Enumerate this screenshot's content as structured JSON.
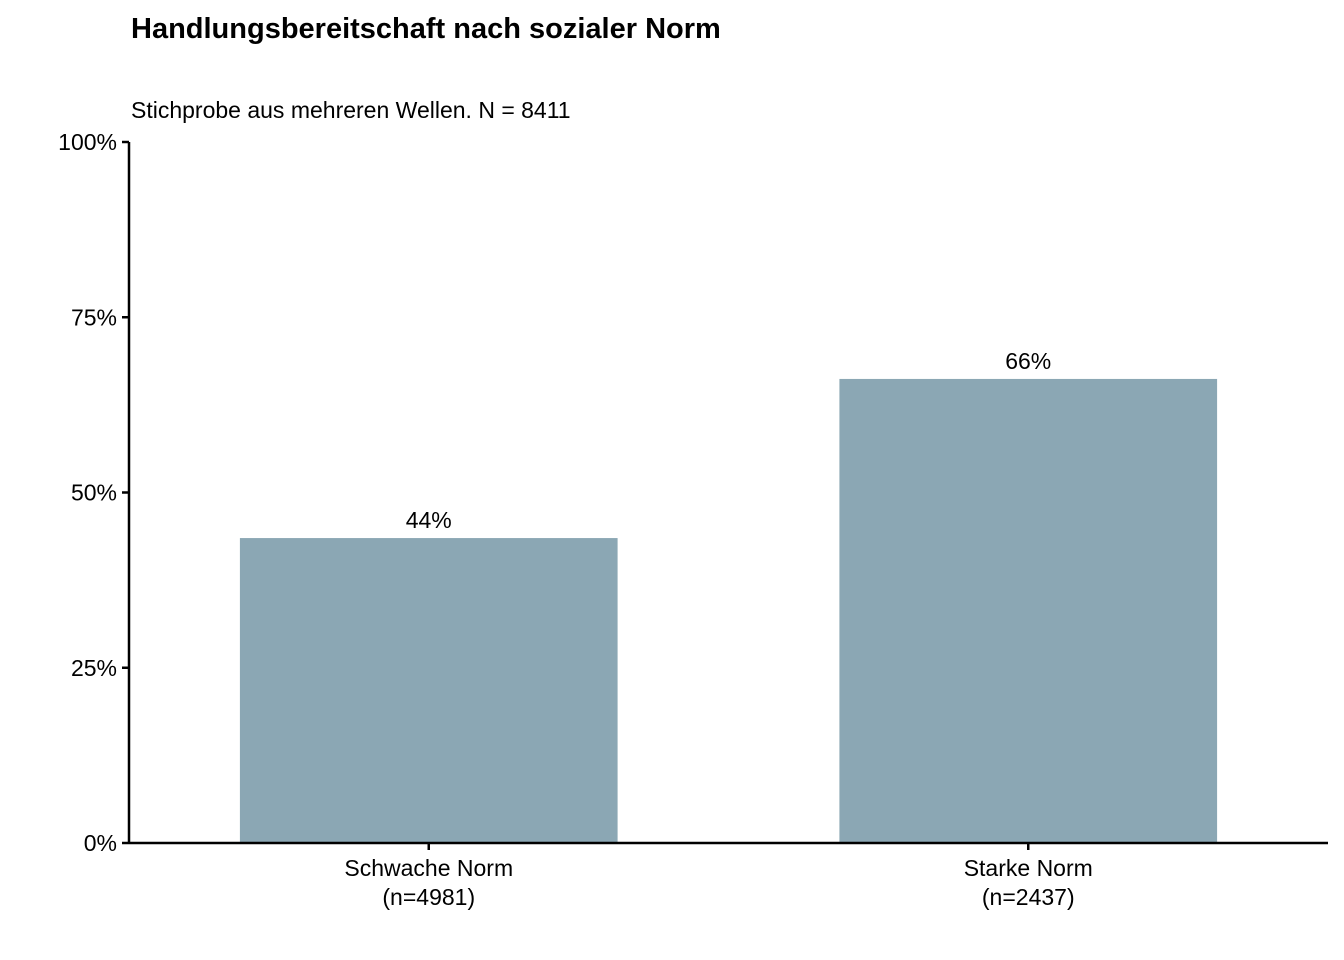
{
  "chart_data": {
    "type": "bar",
    "title": "Handlungsbereitschaft nach sozialer Norm",
    "subtitle": "Stichprobe aus mehreren Wellen. N = 8411",
    "categories": [
      [
        "Schwache Norm",
        "(n=4981)"
      ],
      [
        "Starke Norm",
        "(n=2437)"
      ]
    ],
    "values": [
      0.435,
      0.662
    ],
    "data_labels": [
      "44%",
      "66%"
    ],
    "ylim": [
      0,
      1
    ],
    "yticks": [
      0,
      0.25,
      0.5,
      0.75,
      1
    ],
    "ytick_labels": [
      "0%",
      "25%",
      "50%",
      "75%",
      "100%"
    ],
    "xlabel": "",
    "ylabel": "",
    "grid": false,
    "bar_color": "#8ba7b4"
  }
}
